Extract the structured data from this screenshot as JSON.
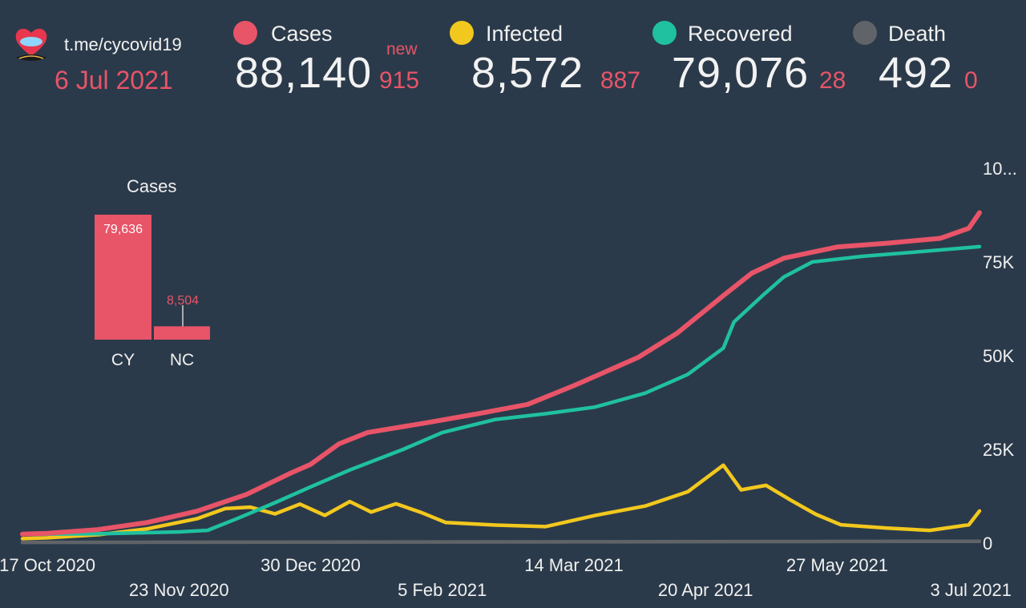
{
  "header": {
    "source": "t.me/cycovid19",
    "date": "6 Jul 2021",
    "new_label": "new"
  },
  "stats": [
    {
      "label": "Cases",
      "value": "88,140",
      "delta": "915",
      "color": "#e85468"
    },
    {
      "label": "Infected",
      "value": "8,572",
      "delta": "887",
      "color": "#f2c81e"
    },
    {
      "label": "Recovered",
      "value": "79,076",
      "delta": "28",
      "color": "#1fc1a0"
    },
    {
      "label": "Death",
      "value": "492",
      "delta": "0",
      "color": "#606468"
    }
  ],
  "chart_data": [
    {
      "type": "bar",
      "title": "Cases",
      "categories": [
        "CY",
        "NC"
      ],
      "values": [
        79636,
        8504
      ],
      "value_labels": [
        "79,636",
        "8,504"
      ],
      "color": "#e85468"
    },
    {
      "type": "line",
      "title": "",
      "x_tick_labels": [
        "17 Oct 2020",
        "23 Nov 2020",
        "30 Dec 2020",
        "5 Feb 2021",
        "14 Mar 2021",
        "20 Apr 2021",
        "27 May 2021",
        "3 Jul 2021"
      ],
      "x_ticks": [
        "2020-10-17",
        "2020-11-23",
        "2020-12-30",
        "2021-02-05",
        "2021-03-14",
        "2021-04-20",
        "2021-05-27",
        "2021-07-03"
      ],
      "y_tick_labels": [
        "0",
        "25K",
        "50K",
        "75K",
        "10..."
      ],
      "ylim": [
        0,
        100000
      ],
      "grid": false,
      "legend": "top",
      "series": [
        {
          "name": "Cases",
          "color": "#e85468",
          "points": [
            [
              "2020-10-10",
              2400
            ],
            [
              "2020-10-17",
              2600
            ],
            [
              "2020-10-31",
              3600
            ],
            [
              "2020-11-14",
              5500
            ],
            [
              "2020-11-28",
              8500
            ],
            [
              "2020-12-12",
              13000
            ],
            [
              "2020-12-24",
              18500
            ],
            [
              "2020-12-30",
              21000
            ],
            [
              "2021-01-07",
              26500
            ],
            [
              "2021-01-15",
              29500
            ],
            [
              "2021-01-31",
              32000
            ],
            [
              "2021-02-15",
              34500
            ],
            [
              "2021-03-01",
              37000
            ],
            [
              "2021-03-14",
              42000
            ],
            [
              "2021-04-01",
              49500
            ],
            [
              "2021-04-12",
              56000
            ],
            [
              "2021-04-25",
              66000
            ],
            [
              "2021-05-03",
              72000
            ],
            [
              "2021-05-12",
              76000
            ],
            [
              "2021-05-27",
              79000
            ],
            [
              "2021-06-10",
              80000
            ],
            [
              "2021-06-25",
              81300
            ],
            [
              "2021-07-03",
              84000
            ],
            [
              "2021-07-06",
              88140
            ]
          ]
        },
        {
          "name": "Infected",
          "color": "#f2c81e",
          "points": [
            [
              "2020-10-10",
              1200
            ],
            [
              "2020-10-17",
              1400
            ],
            [
              "2020-11-01",
              2300
            ],
            [
              "2020-11-14",
              3800
            ],
            [
              "2020-11-28",
              6500
            ],
            [
              "2020-12-06",
              9200
            ],
            [
              "2020-12-13",
              9600
            ],
            [
              "2020-12-20",
              7800
            ],
            [
              "2020-12-27",
              10400
            ],
            [
              "2021-01-03",
              7400
            ],
            [
              "2021-01-10",
              11100
            ],
            [
              "2021-01-16",
              8300
            ],
            [
              "2021-01-23",
              10500
            ],
            [
              "2021-01-30",
              8200
            ],
            [
              "2021-02-06",
              5500
            ],
            [
              "2021-02-20",
              4800
            ],
            [
              "2021-03-06",
              4400
            ],
            [
              "2021-03-20",
              7400
            ],
            [
              "2021-04-03",
              9900
            ],
            [
              "2021-04-15",
              13700
            ],
            [
              "2021-04-25",
              20800
            ],
            [
              "2021-04-30",
              14200
            ],
            [
              "2021-05-07",
              15400
            ],
            [
              "2021-05-14",
              11400
            ],
            [
              "2021-05-21",
              7700
            ],
            [
              "2021-05-28",
              4900
            ],
            [
              "2021-06-10",
              4000
            ],
            [
              "2021-06-22",
              3400
            ],
            [
              "2021-07-03",
              4900
            ],
            [
              "2021-07-06",
              8572
            ]
          ]
        },
        {
          "name": "Recovered",
          "color": "#1fc1a0",
          "points": [
            [
              "2020-10-10",
              2300
            ],
            [
              "2020-10-17",
              2400
            ],
            [
              "2020-11-01",
              2500
            ],
            [
              "2020-11-23",
              3000
            ],
            [
              "2020-12-01",
              3400
            ],
            [
              "2020-12-10",
              6800
            ],
            [
              "2020-12-20",
              10800
            ],
            [
              "2020-12-30",
              15000
            ],
            [
              "2021-01-10",
              19500
            ],
            [
              "2021-01-25",
              25000
            ],
            [
              "2021-02-05",
              29500
            ],
            [
              "2021-02-20",
              33000
            ],
            [
              "2021-03-06",
              34500
            ],
            [
              "2021-03-20",
              36300
            ],
            [
              "2021-04-03",
              40000
            ],
            [
              "2021-04-15",
              45000
            ],
            [
              "2021-04-25",
              52000
            ],
            [
              "2021-04-28",
              59000
            ],
            [
              "2021-05-06",
              66000
            ],
            [
              "2021-05-12",
              71000
            ],
            [
              "2021-05-20",
              75000
            ],
            [
              "2021-06-03",
              76500
            ],
            [
              "2021-06-20",
              77800
            ],
            [
              "2021-07-06",
              79076
            ]
          ]
        },
        {
          "name": "Death",
          "color": "#606468",
          "points": [
            [
              "2020-10-10",
              200
            ],
            [
              "2020-12-30",
              250
            ],
            [
              "2021-03-14",
              350
            ],
            [
              "2021-05-27",
              450
            ],
            [
              "2021-07-06",
              492
            ]
          ]
        }
      ]
    }
  ]
}
